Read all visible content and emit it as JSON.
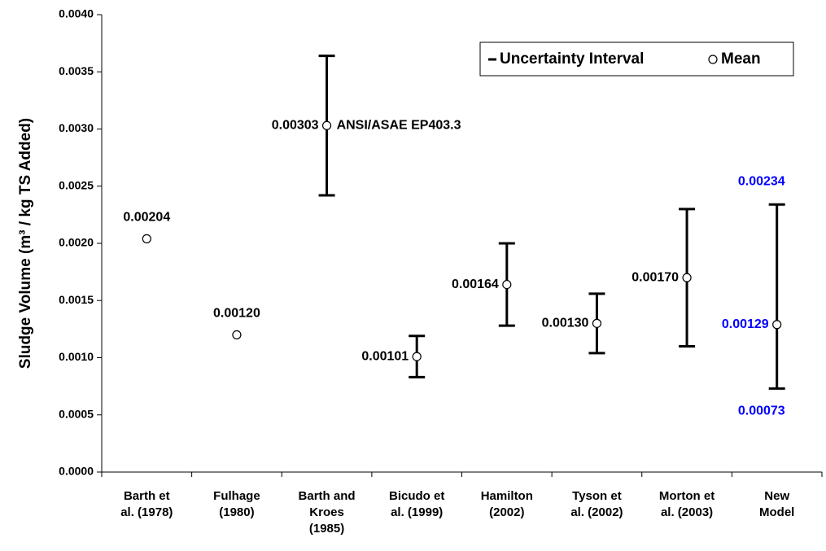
{
  "chart_data": {
    "type": "errorbar",
    "ylabel": "Sludge Volume (m³ / kg TS Added)",
    "categories": [
      "Barth et\nal. (1978)",
      "Fulhage\n(1980)",
      "Barth and\nKroes\n(1985)",
      "Bicudo et\nal. (1999)",
      "Hamilton\n(2002)",
      "Tyson et\nal. (2002)",
      "Morton et\nal. (2003)",
      "New\nModel"
    ],
    "series": [
      {
        "name": "Uncertainty Interval",
        "color": "#000000",
        "lower": [
          null,
          null,
          0.00242,
          0.00083,
          0.00128,
          0.00104,
          0.0011,
          0.00073
        ],
        "upper": [
          null,
          null,
          0.00364,
          0.00119,
          0.002,
          0.00156,
          0.0023,
          0.00234
        ],
        "lower_labels": [
          null,
          null,
          null,
          null,
          null,
          null,
          null,
          "0.00073"
        ],
        "upper_labels": [
          null,
          null,
          null,
          null,
          null,
          null,
          null,
          "0.00234"
        ]
      },
      {
        "name": "Mean",
        "color": "#000000",
        "values": [
          0.00204,
          0.0012,
          0.00303,
          0.00101,
          0.00164,
          0.0013,
          0.0017,
          0.00129
        ],
        "value_labels": [
          "0.00204",
          "0.00120",
          "0.00303",
          "0.00101",
          "0.00164",
          "0.00130",
          "0.00170",
          "0.00129"
        ]
      }
    ],
    "label_colors": [
      "#000000",
      "#000000",
      "#000000",
      "#000000",
      "#000000",
      "#000000",
      "#000000",
      "#0000ff"
    ],
    "annotations": [
      {
        "category": 2,
        "text": "ANSI/ASAE EP403.3"
      }
    ],
    "ylim": [
      0,
      0.004
    ],
    "yticks": [
      {
        "value": 0,
        "label": "0.0000"
      },
      {
        "value": 0.0005,
        "label": "0.0005"
      },
      {
        "value": 0.001,
        "label": "0.0010"
      },
      {
        "value": 0.0015,
        "label": "0.0015"
      },
      {
        "value": 0.002,
        "label": "0.0020"
      },
      {
        "value": 0.0025,
        "label": "0.0025"
      },
      {
        "value": 0.003,
        "label": "0.0030"
      },
      {
        "value": 0.0035,
        "label": "0.0035"
      },
      {
        "value": 0.004,
        "label": "0.0040"
      }
    ],
    "legend": "upper right"
  }
}
